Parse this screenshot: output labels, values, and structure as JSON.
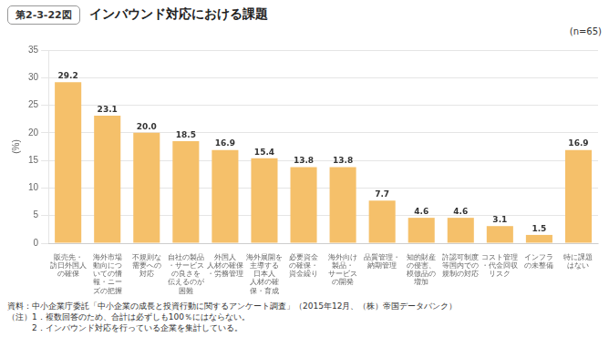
{
  "chart_data": {
    "type": "bar",
    "title": "インバウンド対応における課題",
    "ylabel": "(%)",
    "annotations": [
      "第2-3-22図",
      "(n=65)",
      "資料：中小企業庁委託「中小企業の成長と投資行動に関するアンケート調査」（2015年12月、（株）帝国データバンク）",
      "（注）1．複数回答のため、合計は必ずしも100％にはならない。",
      "　　　2．インバウンド対応を行っている企業を集計している。"
    ],
    "categories": [
      "販売先・\n訪日外国人\nの確保",
      "海外市場\n動向につ\nいての情\n報・ニー\nズの把握",
      "不規則な\n需要への\n対応",
      "自社の製品\n・サービス\nの良さを\n伝えるのが\n困難",
      "外国人\n人材の確保\n・労務管理",
      "海外展開を\n主導する\n日本人\n人材の確\n保・育成",
      "必要資金\nの確保・\n資金繰り",
      "海外向け\n製品・\nサービス\nの開発",
      "品質管理・\n納期管理",
      "知的財産\nの侵害、\n模倣品の\n増加",
      "許認可制度\n等国内での\n規制の対応",
      "コスト管理\n・代金回収\nリスク",
      "インフラ\nの未整備",
      "特に課題\nはない"
    ],
    "values": [
      29.2,
      23.1,
      20.0,
      18.5,
      16.9,
      15.4,
      13.8,
      13.8,
      7.7,
      4.6,
      4.6,
      3.1,
      1.5,
      16.9
    ],
    "value_labels": [
      "29.2",
      "23.1",
      "20.0",
      "18.5",
      "16.9",
      "15.4",
      "13.8",
      "13.8",
      "7.7",
      "4.6",
      "4.6",
      "3.1",
      "1.5",
      "16.9"
    ],
    "color": "#F5C06A",
    "ylim": [
      0,
      35
    ],
    "yticks": [
      0,
      5,
      10,
      15,
      20,
      25,
      30,
      35
    ],
    "grid": true,
    "data_labels": true
  }
}
